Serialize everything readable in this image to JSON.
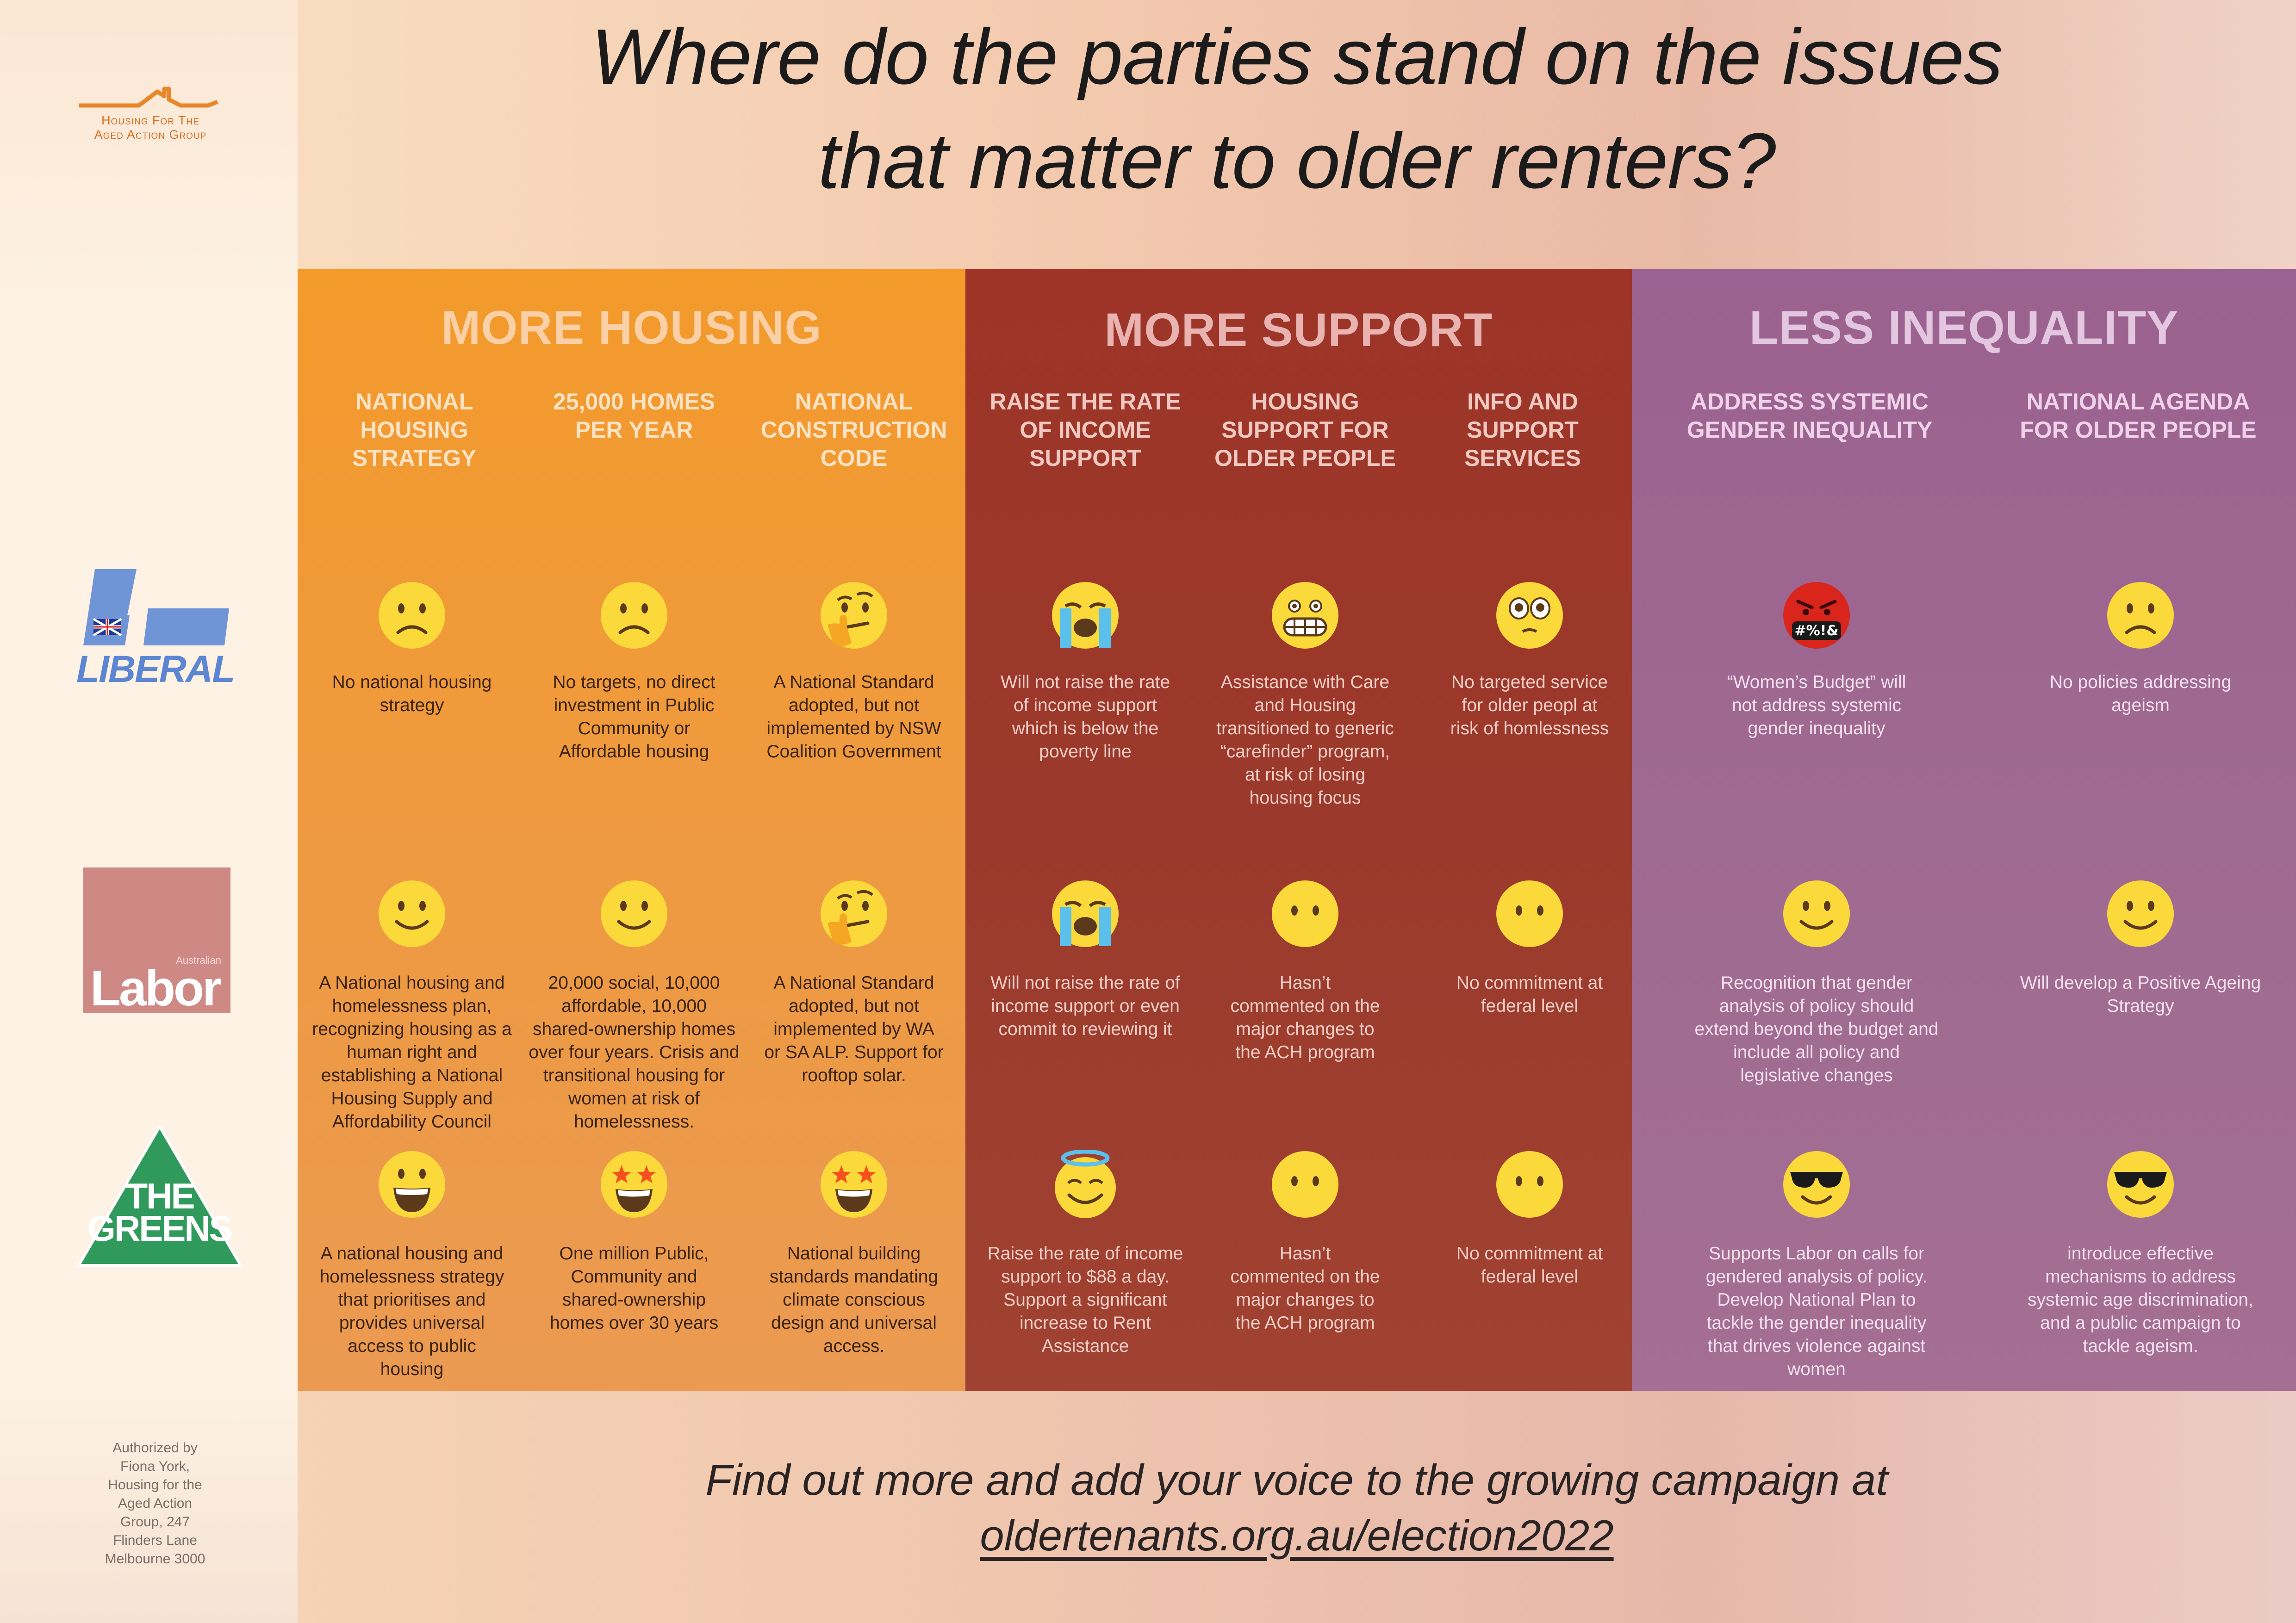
{
  "org_logo": {
    "line1": "Housing For The",
    "line2": "Aged Action Group"
  },
  "title": {
    "line1": "Where do the parties stand on the issues",
    "line2": "that matter to older renters?"
  },
  "sections": [
    {
      "title": "MORE HOUSING",
      "issues": [
        [
          "NATIONAL",
          "HOUSING",
          "STRATEGY"
        ],
        [
          "25,000 HOMES",
          "PER YEAR"
        ],
        [
          "NATIONAL",
          "CONSTRUCTION",
          "CODE"
        ]
      ]
    },
    {
      "title": "MORE SUPPORT",
      "issues": [
        [
          "RAISE THE RATE",
          "OF INCOME",
          "SUPPORT"
        ],
        [
          "HOUSING",
          "SUPPORT FOR",
          "OLDER PEOPLE"
        ],
        [
          "INFO AND",
          "SUPPORT",
          "SERVICES"
        ]
      ]
    },
    {
      "title": "LESS INEQUALITY",
      "issues": [
        [
          "ADDRESS SYSTEMIC",
          "GENDER INEQUALITY"
        ],
        [
          "NATIONAL AGENDA",
          "FOR OLDER PEOPLE"
        ]
      ]
    }
  ],
  "parties": [
    {
      "name": "LIBERAL",
      "cells": [
        {
          "face": "frowning-face",
          "lines": [
            "No national housing",
            "strategy"
          ]
        },
        {
          "face": "frowning-face",
          "lines": [
            "No targets, no direct",
            "investment in Public",
            "Community or",
            "Affordable housing"
          ]
        },
        {
          "face": "thinking-face",
          "lines": [
            "A  National Standard",
            "adopted, but not",
            "implemented by NSW",
            "Coalition Government"
          ]
        },
        {
          "face": "loudly-crying-face",
          "lines": [
            "Will not raise the rate",
            "of income support",
            "which is below the",
            "poverty line"
          ]
        },
        {
          "face": "grimacing-face",
          "lines": [
            "Assistance with Care",
            "and Housing",
            "transitioned to generic",
            "“carefinder” program,",
            "at risk of losing",
            "housing focus"
          ]
        },
        {
          "face": "face-holding-back-tears",
          "lines": [
            "No targeted service",
            "for older peopl at",
            "risk of homlessness"
          ]
        },
        {
          "face": "face-with-symbols-on-mouth",
          "symbol": "#%!&",
          "lines": [
            "“Women’s Budget” will",
            "not address systemic",
            "gender inequality"
          ]
        },
        {
          "face": "frowning-face",
          "lines": [
            "No policies addressing",
            "ageism"
          ]
        }
      ]
    },
    {
      "name": "Labor",
      "small": "Australian",
      "cells": [
        {
          "face": "slightly-smiling-face",
          "lines": [
            "A National housing and",
            "homelessness plan,",
            "recognizing housing as a",
            "human right and",
            "establishing a National",
            "Housing Supply and",
            "Affordability Council"
          ]
        },
        {
          "face": "slightly-smiling-face",
          "lines": [
            "20,000 social, 10,000",
            "affordable, 10,000",
            "shared-ownership homes",
            "over four years. Crisis and",
            "transitional housing for",
            "women at risk of",
            "homelessness."
          ]
        },
        {
          "face": "thinking-face",
          "lines": [
            "A  National Standard",
            "adopted, but not",
            "implemented by WA",
            "or SA ALP. Support for",
            "rooftop solar."
          ]
        },
        {
          "face": "loudly-crying-face",
          "lines": [
            "Will not raise the rate of",
            "income support or even",
            "commit to reviewing it"
          ]
        },
        {
          "face": "face-without-mouth",
          "lines": [
            "Hasn’t",
            "commented on the",
            "major changes to",
            "the ACH program"
          ]
        },
        {
          "face": "face-without-mouth",
          "lines": [
            "No commitment at",
            "federal level"
          ]
        },
        {
          "face": "slightly-smiling-face",
          "lines": [
            "Recognition that gender",
            "analysis of policy should",
            "extend beyond the budget and",
            "include all policy and",
            "legislative changes"
          ]
        },
        {
          "face": "slightly-smiling-face",
          "lines": [
            "Will develop a Positive Ageing",
            "Strategy"
          ]
        }
      ]
    },
    {
      "name_top": "THE",
      "name_bottom": "GREENS",
      "cells": [
        {
          "face": "grinning-face",
          "lines": [
            "A national housing and",
            "homelessness strategy",
            "that prioritises and",
            "provides universal",
            "access to public",
            "housing"
          ]
        },
        {
          "face": "star-struck",
          "lines": [
            "One million Public,",
            "Community and",
            "shared-ownership",
            "homes over 30 years"
          ]
        },
        {
          "face": "star-struck",
          "lines": [
            "National building",
            "standards mandating",
            "climate conscious",
            "design and universal",
            "access."
          ]
        },
        {
          "face": "smiling-face-with-halo",
          "lines": [
            "Raise the rate of income",
            "support to $88 a day.",
            "Support a significant",
            "increase to Rent",
            "Assistance"
          ]
        },
        {
          "face": "face-without-mouth",
          "lines": [
            "Hasn’t",
            "commented on the",
            "major changes to",
            "the ACH program"
          ]
        },
        {
          "face": "face-without-mouth",
          "lines": [
            "No commitment at",
            "federal level"
          ]
        },
        {
          "face": "smiling-face-with-sunglasses",
          "lines": [
            "Supports Labor on calls for",
            "gendered analysis of policy.",
            "Develop National Plan to",
            "tackle the gender inequality",
            "that drives violence against",
            "women"
          ]
        },
        {
          "face": "smiling-face-with-sunglasses",
          "lines": [
            "introduce effective",
            "mechanisms to address",
            "systemic age discrimination,",
            "and a public campaign to",
            "tackle ageism."
          ]
        }
      ]
    }
  ],
  "authorization": [
    "Authorized by",
    "Fiona York,",
    "Housing for the",
    "Aged Action",
    "Group, 247",
    "Flinders Lane",
    "Melbourne 3000"
  ],
  "footer": {
    "line1": "Find out more and add your voice to the growing campaign at",
    "link": "oldertenants.org.au/election2022"
  },
  "colors": {
    "housing": "#f39a2b",
    "support": "#9d3427",
    "inequality": "#9b6190",
    "face_yellow": "#fbd93a"
  }
}
